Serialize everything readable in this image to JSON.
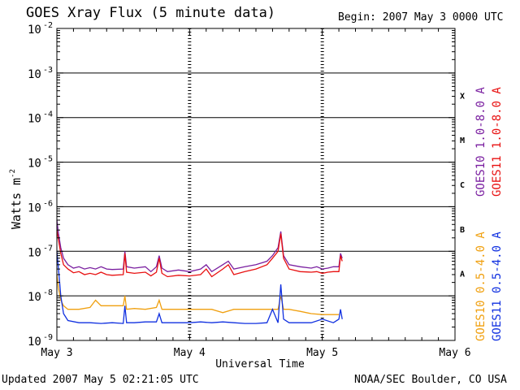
{
  "header": {
    "title": "GOES Xray Flux (5 minute data)",
    "begin": "Begin:  2007 May 3 0000 UTC"
  },
  "footer": {
    "updated": "Updated 2007 May  5 02:21:05 UTC",
    "credit": "NOAA/SEC Boulder, CO USA"
  },
  "chart_data": {
    "type": "line",
    "title": "GOES Xray Flux (5 minute data)",
    "xlabel": "Universal Time",
    "ylabel": "Watts m",
    "ylabel_exponent": "-2",
    "yscale": "log",
    "ylim": [
      1e-09,
      0.01
    ],
    "xlim": [
      0,
      72
    ],
    "x_ticks": [
      {
        "x": 0,
        "label": "May 3"
      },
      {
        "x": 24,
        "label": "May 4"
      },
      {
        "x": 48,
        "label": "May 5"
      },
      {
        "x": 72,
        "label": "May 6"
      }
    ],
    "y_ticks": [
      {
        "exp": -9,
        "label": "10",
        "sup": "-9"
      },
      {
        "exp": -8,
        "label": "10",
        "sup": "-8"
      },
      {
        "exp": -7,
        "label": "10",
        "sup": "-7"
      },
      {
        "exp": -6,
        "label": "10",
        "sup": "-6"
      },
      {
        "exp": -5,
        "label": "10",
        "sup": "-5"
      },
      {
        "exp": -4,
        "label": "10",
        "sup": "-4"
      },
      {
        "exp": -3,
        "label": "10",
        "sup": "-3"
      },
      {
        "exp": -2,
        "label": "10",
        "sup": "-2"
      }
    ],
    "flare_classes": [
      {
        "label": "A",
        "exp": -7.5
      },
      {
        "label": "B",
        "exp": -6.5
      },
      {
        "label": "C",
        "exp": -5.5
      },
      {
        "label": "M",
        "exp": -4.5
      },
      {
        "label": "X",
        "exp": -3.5
      }
    ],
    "grid_lines_exp": [
      -8,
      -7,
      -6,
      -5,
      -4,
      -3
    ],
    "series": [
      {
        "name": "GOES10 1.0-8.0 A",
        "color": "#7a1fa0",
        "points": [
          [
            0,
            5e-07
          ],
          [
            0.3,
            2.5e-07
          ],
          [
            0.7,
            1.2e-07
          ],
          [
            1.2,
            7e-08
          ],
          [
            2,
            5e-08
          ],
          [
            3,
            4.2e-08
          ],
          [
            4,
            4.5e-08
          ],
          [
            5,
            4e-08
          ],
          [
            6,
            4.3e-08
          ],
          [
            7,
            4e-08
          ],
          [
            8,
            4.5e-08
          ],
          [
            9,
            4e-08
          ],
          [
            10,
            3.9e-08
          ],
          [
            12,
            4e-08
          ],
          [
            12.3,
            1e-07
          ],
          [
            12.6,
            4.5e-08
          ],
          [
            14,
            4.2e-08
          ],
          [
            16,
            4.5e-08
          ],
          [
            17,
            3.5e-08
          ],
          [
            18,
            4.5e-08
          ],
          [
            18.5,
            8e-08
          ],
          [
            19,
            4.2e-08
          ],
          [
            20,
            3.5e-08
          ],
          [
            22,
            3.8e-08
          ],
          [
            24,
            3.5e-08
          ],
          [
            26,
            4e-08
          ],
          [
            27,
            5e-08
          ],
          [
            28,
            3.5e-08
          ],
          [
            30,
            5e-08
          ],
          [
            31,
            6e-08
          ],
          [
            32,
            4e-08
          ],
          [
            34,
            4.5e-08
          ],
          [
            36,
            5e-08
          ],
          [
            38,
            6e-08
          ],
          [
            39,
            8e-08
          ],
          [
            40,
            1.2e-07
          ],
          [
            40.5,
            2.8e-07
          ],
          [
            41,
            8e-08
          ],
          [
            42,
            5e-08
          ],
          [
            44,
            4.5e-08
          ],
          [
            46,
            4.2e-08
          ],
          [
            47,
            4.5e-08
          ],
          [
            48,
            4e-08
          ],
          [
            49,
            4.2e-08
          ],
          [
            50,
            4.5e-08
          ],
          [
            51,
            4.5e-08
          ],
          [
            51.3,
            9e-08
          ],
          [
            51.6,
            7e-08
          ]
        ]
      },
      {
        "name": "GOES11 1.0-8.0 A",
        "color": "#e81010",
        "points": [
          [
            0,
            3e-07
          ],
          [
            0.3,
            1.8e-07
          ],
          [
            0.7,
            9e-08
          ],
          [
            1.2,
            5e-08
          ],
          [
            2,
            4e-08
          ],
          [
            3,
            3.3e-08
          ],
          [
            4,
            3.5e-08
          ],
          [
            5,
            3e-08
          ],
          [
            6,
            3.2e-08
          ],
          [
            7,
            3e-08
          ],
          [
            8,
            3.4e-08
          ],
          [
            9,
            3e-08
          ],
          [
            10,
            2.9e-08
          ],
          [
            12,
            3e-08
          ],
          [
            12.3,
            9e-08
          ],
          [
            12.6,
            3.4e-08
          ],
          [
            14,
            3.2e-08
          ],
          [
            16,
            3.4e-08
          ],
          [
            17,
            2.8e-08
          ],
          [
            18,
            3.4e-08
          ],
          [
            18.5,
            7e-08
          ],
          [
            19,
            3.2e-08
          ],
          [
            20,
            2.7e-08
          ],
          [
            22,
            2.9e-08
          ],
          [
            24,
            2.8e-08
          ],
          [
            26,
            3e-08
          ],
          [
            27,
            4e-08
          ],
          [
            28,
            2.7e-08
          ],
          [
            30,
            4e-08
          ],
          [
            31,
            5e-08
          ],
          [
            32,
            3e-08
          ],
          [
            34,
            3.5e-08
          ],
          [
            36,
            4e-08
          ],
          [
            38,
            5e-08
          ],
          [
            39,
            7e-08
          ],
          [
            40,
            1e-07
          ],
          [
            40.5,
            2.5e-07
          ],
          [
            41,
            7e-08
          ],
          [
            42,
            4e-08
          ],
          [
            44,
            3.5e-08
          ],
          [
            46,
            3.4e-08
          ],
          [
            47,
            3.5e-08
          ],
          [
            48,
            3.2e-08
          ],
          [
            49,
            3.4e-08
          ],
          [
            50,
            3.5e-08
          ],
          [
            51,
            3.5e-08
          ],
          [
            51.3,
            8e-08
          ],
          [
            51.6,
            6e-08
          ]
        ]
      },
      {
        "name": "GOES10 0.5-4.0 A",
        "color": "#f0a010",
        "points": [
          [
            0,
            3e-08
          ],
          [
            0.3,
            1.5e-08
          ],
          [
            0.7,
            8e-09
          ],
          [
            1.2,
            6e-09
          ],
          [
            2,
            5e-09
          ],
          [
            4,
            5e-09
          ],
          [
            6,
            5.5e-09
          ],
          [
            7,
            8e-09
          ],
          [
            8,
            6e-09
          ],
          [
            10,
            6e-09
          ],
          [
            12,
            6e-09
          ],
          [
            12.3,
            1e-08
          ],
          [
            12.6,
            5e-09
          ],
          [
            14,
            5.2e-09
          ],
          [
            16,
            5e-09
          ],
          [
            18,
            5.5e-09
          ],
          [
            18.5,
            8e-09
          ],
          [
            19,
            5e-09
          ],
          [
            20,
            5e-09
          ],
          [
            24,
            5e-09
          ],
          [
            28,
            5e-09
          ],
          [
            30,
            4.2e-09
          ],
          [
            32,
            5e-09
          ],
          [
            34,
            5e-09
          ],
          [
            36,
            5e-09
          ],
          [
            38,
            5e-09
          ],
          [
            40,
            5e-09
          ],
          [
            40.5,
            1e-08
          ],
          [
            41,
            5e-09
          ],
          [
            42,
            5e-09
          ],
          [
            44,
            4.5e-09
          ],
          [
            46,
            4e-09
          ],
          [
            48,
            3.8e-09
          ],
          [
            50,
            3.8e-09
          ],
          [
            51,
            3.8e-09
          ]
        ]
      },
      {
        "name": "GOES11 0.5-4.0 A",
        "color": "#1030e0",
        "points": [
          [
            0,
            1e-07
          ],
          [
            0.3,
            4e-08
          ],
          [
            0.7,
            1e-08
          ],
          [
            1.2,
            4e-09
          ],
          [
            2,
            2.8e-09
          ],
          [
            4,
            2.5e-09
          ],
          [
            6,
            2.5e-09
          ],
          [
            8,
            2.4e-09
          ],
          [
            10,
            2.5e-09
          ],
          [
            12,
            2.4e-09
          ],
          [
            12.3,
            6e-09
          ],
          [
            12.6,
            2.5e-09
          ],
          [
            14,
            2.5e-09
          ],
          [
            16,
            2.6e-09
          ],
          [
            18,
            2.6e-09
          ],
          [
            18.5,
            4e-09
          ],
          [
            19,
            2.5e-09
          ],
          [
            22,
            2.5e-09
          ],
          [
            24,
            2.5e-09
          ],
          [
            26,
            2.6e-09
          ],
          [
            28,
            2.5e-09
          ],
          [
            30,
            2.6e-09
          ],
          [
            32,
            2.5e-09
          ],
          [
            34,
            2.4e-09
          ],
          [
            36,
            2.4e-09
          ],
          [
            38,
            2.5e-09
          ],
          [
            39,
            5e-09
          ],
          [
            40,
            2.5e-09
          ],
          [
            40.5,
            1.8e-08
          ],
          [
            41,
            3e-09
          ],
          [
            42,
            2.5e-09
          ],
          [
            44,
            2.5e-09
          ],
          [
            46,
            2.5e-09
          ],
          [
            48,
            3e-09
          ],
          [
            50,
            2.5e-09
          ],
          [
            51,
            3e-09
          ],
          [
            51.3,
            5e-09
          ],
          [
            51.6,
            3e-09
          ]
        ]
      }
    ]
  }
}
